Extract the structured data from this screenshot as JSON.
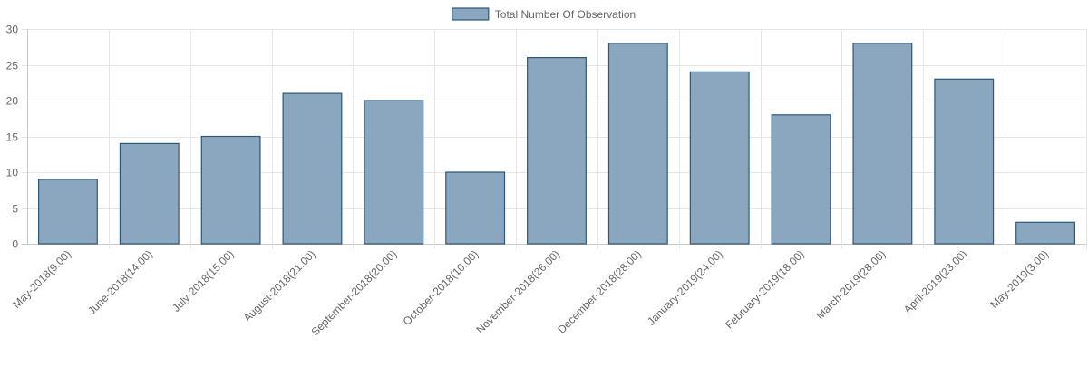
{
  "chart_data": {
    "type": "bar",
    "title": "",
    "xlabel": "",
    "ylabel": "",
    "ylim": [
      0,
      30
    ],
    "yticks": [
      0,
      5,
      10,
      15,
      20,
      25,
      30
    ],
    "categories": [
      "May-2018(9.00)",
      "June-2018(14.00)",
      "July-2018(15.00)",
      "August-2018(21.00)",
      "September-2018(20.00)",
      "October-2018(10.00)",
      "November-2018(26.00)",
      "December-2018(28.00)",
      "January-2019(24.00)",
      "February-2019(18.00)",
      "March-2019(28.00)",
      "April-2019(23.00)",
      "May-2019(3.00)"
    ],
    "series": [
      {
        "name": "Total Number Of Observation",
        "values": [
          9,
          14,
          15,
          21,
          20,
          10,
          26,
          28,
          24,
          18,
          28,
          23,
          3
        ],
        "fill_color": "#8ba6bf",
        "border_color": "#2e5777"
      }
    ],
    "legend_position": "top-center",
    "grid": true
  }
}
